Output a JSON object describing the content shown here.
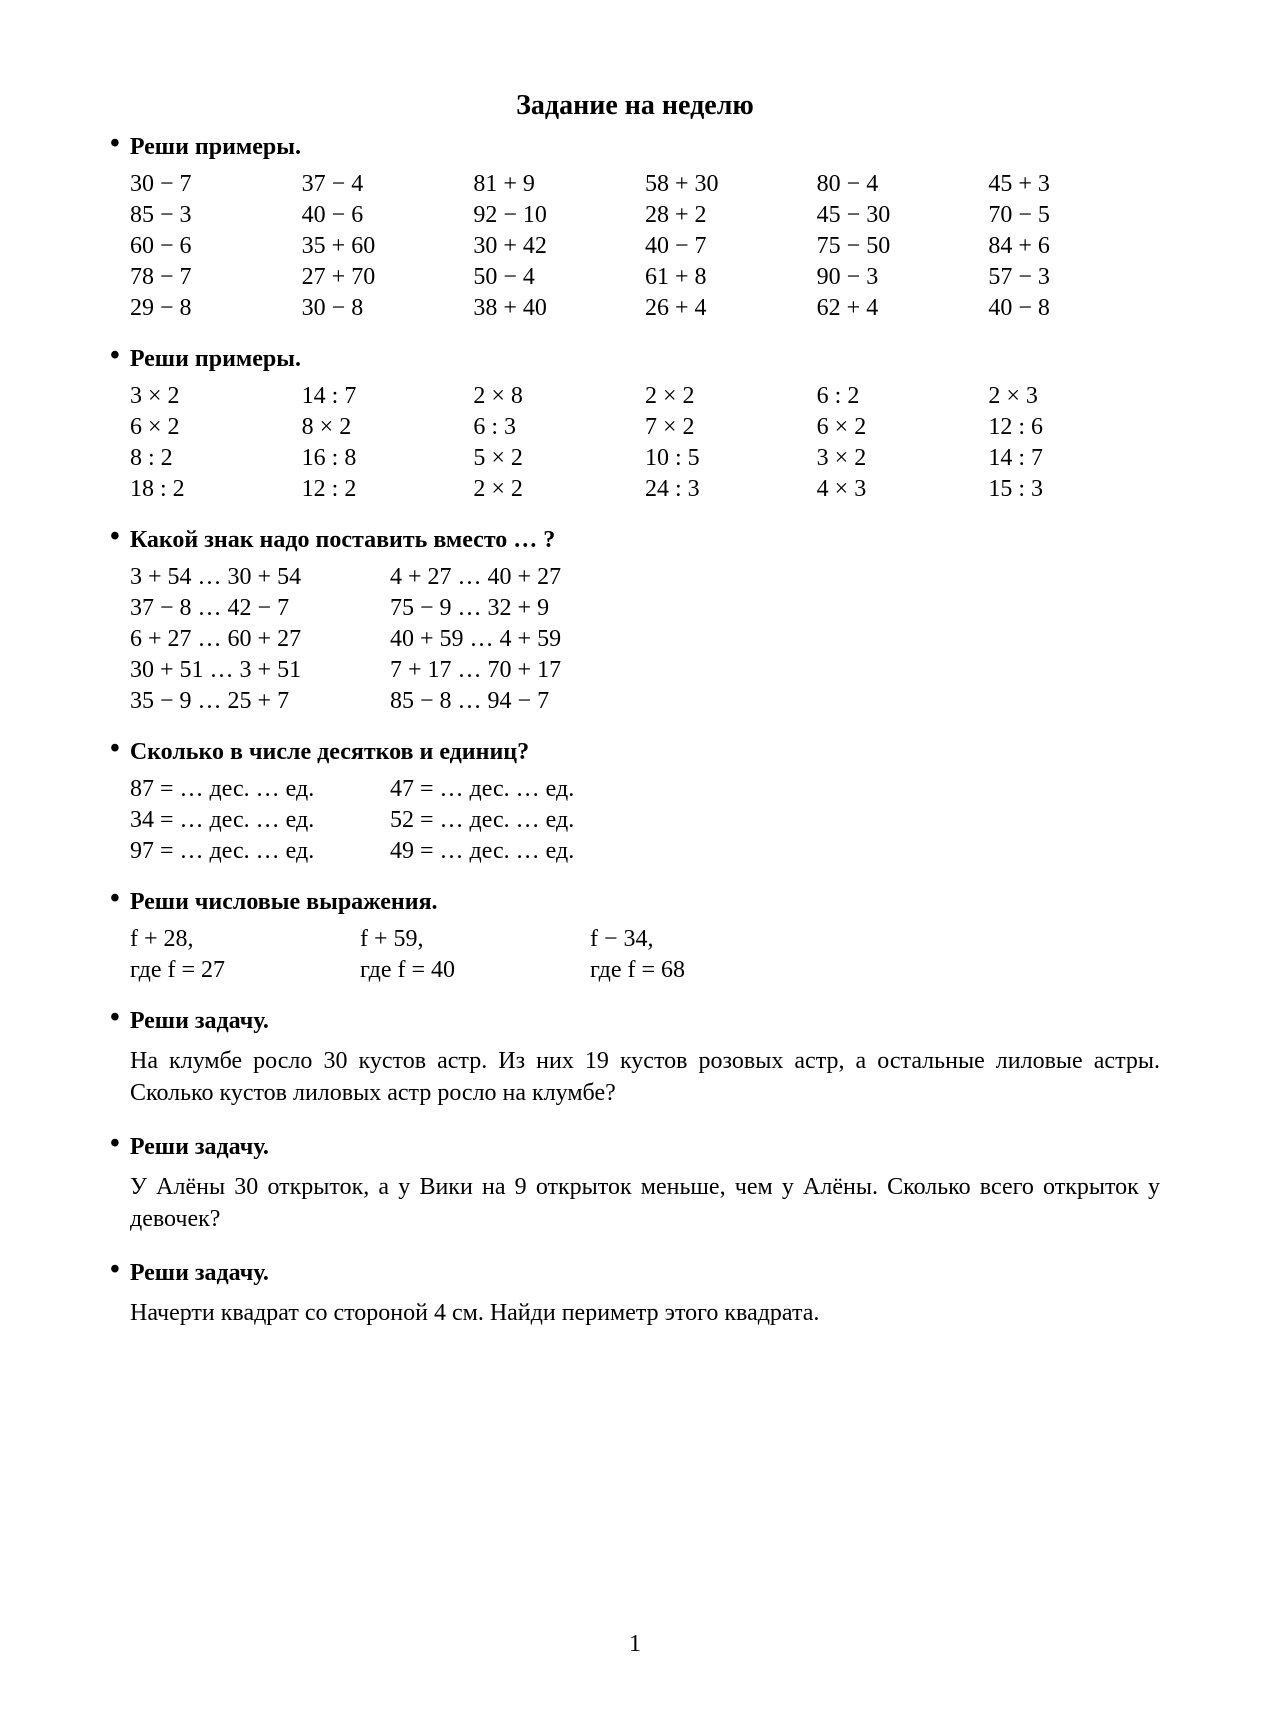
{
  "title": "Задание на неделю",
  "pageNumber": "1",
  "sections": [
    {
      "heading": "Реши примеры.",
      "type": "grid6",
      "rows": [
        [
          "30 − 7",
          "37 − 4",
          "81 + 9",
          "58 + 30",
          "80 − 4",
          "45 + 3"
        ],
        [
          "85 − 3",
          "40 − 6",
          "92 − 10",
          "28 + 2",
          "45 − 30",
          "70 − 5"
        ],
        [
          "60 − 6",
          "35 + 60",
          "30 + 42",
          "40 − 7",
          "75 − 50",
          "84 + 6"
        ],
        [
          "78 − 7",
          "27 + 70",
          "50 − 4",
          "61 + 8",
          "90 − 3",
          "57 − 3"
        ],
        [
          "29 − 8",
          "30 − 8",
          "38 + 40",
          "26 + 4",
          "62 + 4",
          "40 − 8"
        ]
      ]
    },
    {
      "heading": "Реши примеры.",
      "type": "grid6",
      "rows": [
        [
          "3 × 2",
          "14 : 7",
          "2 × 8",
          "2 × 2",
          "6 : 2",
          "2 × 3"
        ],
        [
          "6 × 2",
          "8 × 2",
          "6 : 3",
          "7 × 2",
          "6 × 2",
          "12 : 6"
        ],
        [
          "8 : 2",
          "16 : 8",
          "5 × 2",
          "10 : 5",
          "3 × 2",
          "14 : 7"
        ],
        [
          "18 : 2",
          "12 : 2",
          "2 × 2",
          "24 : 3",
          "4 × 3",
          "15 : 3"
        ]
      ]
    },
    {
      "heading": "Какой знак надо поставить вместо … ?",
      "type": "grid2",
      "rows": [
        [
          "3 + 54 … 30 + 54",
          "4 + 27 … 40 + 27"
        ],
        [
          "37 − 8 … 42 − 7",
          "75 − 9 … 32 + 9"
        ],
        [
          "6 + 27 … 60 + 27",
          "40 + 59 … 4 + 59"
        ],
        [
          "30 + 51 … 3 + 51",
          "7 + 17 … 70 + 17"
        ],
        [
          "35 − 9 … 25 + 7",
          "85 − 8 … 94 − 7"
        ]
      ]
    },
    {
      "heading": "Сколько в числе десятков и единиц?",
      "type": "grid2",
      "rows": [
        [
          "87 = … дес. … ед.",
          "47 = … дес. … ед."
        ],
        [
          "34 = … дес. … ед.",
          "52 = … дес. … ед."
        ],
        [
          "97 = … дес. … ед.",
          "49 = … дес. … ед."
        ]
      ]
    },
    {
      "heading": "Реши числовые выражения.",
      "type": "grid3",
      "rows": [
        [
          "f + 28,",
          "f + 59,",
          "f − 34,"
        ],
        [
          "где f = 27",
          "где f = 40",
          "где f = 68"
        ]
      ]
    },
    {
      "heading": "Реши задачу.",
      "type": "text",
      "text": "На клумбе росло 30 кустов астр. Из них 19 кустов розовых астр, а остальные лиловые астры. Сколько кустов лиловых астр росло на клумбе?"
    },
    {
      "heading": "Реши задачу.",
      "type": "text",
      "text": "У Алёны 30 открыток, а у Вики на 9 открыток меньше, чем у Алёны. Сколько всего открыток у девочек?"
    },
    {
      "heading": "Реши задачу.",
      "type": "text",
      "text": "Начерти квадрат со стороной 4 см. Найди периметр этого квадрата."
    }
  ]
}
